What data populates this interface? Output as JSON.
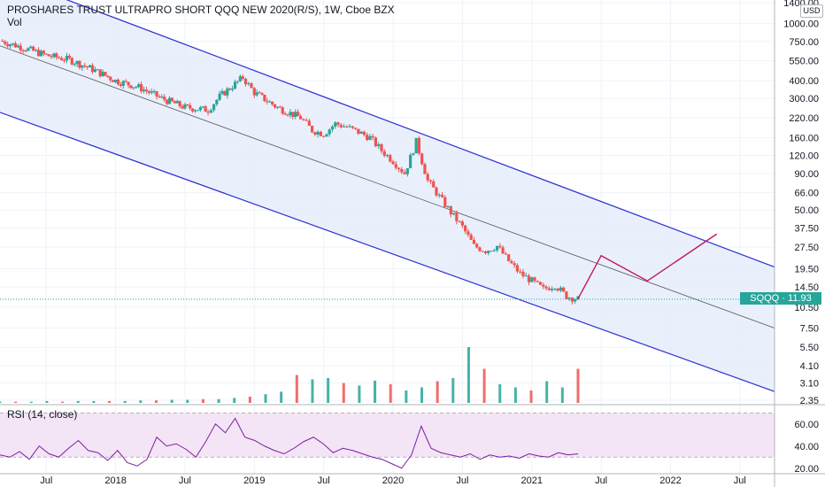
{
  "header": {
    "title": "PROSHARES TRUST ULTRAPRO SHORT QQQ NEW 2020(R/S), 1W, Cboe BZX",
    "volume_label": "Vol",
    "rsi_label": "RSI (14, close)",
    "currency": "USD"
  },
  "price_tag": {
    "symbol": "SQQQ",
    "value": "11.93",
    "color": "#26a69a"
  },
  "colors": {
    "up": "#26a69a",
    "down": "#ef5350",
    "channel_line": "#2a2fd1",
    "channel_fill": "#e3ecfb",
    "mid_line": "#555555",
    "projection": "#c2185b",
    "rsi_line": "#7b1fa2",
    "rsi_band": "#f3e5f5"
  },
  "chart_data": [
    {
      "type": "candlestick",
      "title": "PROSHARES TRUST ULTRAPRO SHORT QQQ NEW 2020(R/S), 1W, Cboe BZX",
      "y_scale": "log",
      "y_ticks": [
        "1400.00",
        "1000.00",
        "750.00",
        "550.00",
        "400.00",
        "300.00",
        "220.00",
        "160.00",
        "120.00",
        "90.00",
        "66.00",
        "50.00",
        "37.50",
        "27.50",
        "19.50",
        "14.50",
        "10.50",
        "7.50",
        "5.50",
        "4.10",
        "3.10",
        "2.35"
      ],
      "x_ticks": [
        "Jul",
        "2018",
        "Jul",
        "2019",
        "Jul",
        "2020",
        "Jul",
        "2021",
        "Jul",
        "2022",
        "Jul"
      ],
      "x_range": [
        "2017-03",
        "2022-10"
      ],
      "last_price": 11.93,
      "series": [
        {
          "name": "SQQQ",
          "points": [
            [
              "2017-03",
              760
            ],
            [
              "2017-05",
              680
            ],
            [
              "2017-07",
              600
            ],
            [
              "2017-09",
              560
            ],
            [
              "2017-11",
              480
            ],
            [
              "2018-01",
              400
            ],
            [
              "2018-03",
              360
            ],
            [
              "2018-05",
              300
            ],
            [
              "2018-07",
              260
            ],
            [
              "2018-09",
              250
            ],
            [
              "2018-10",
              310
            ],
            [
              "2018-12",
              420
            ],
            [
              "2019-01",
              330
            ],
            [
              "2019-03",
              260
            ],
            [
              "2019-05",
              220
            ],
            [
              "2019-06",
              180
            ],
            [
              "2019-07",
              170
            ],
            [
              "2019-08",
              200
            ],
            [
              "2019-09",
              190
            ],
            [
              "2019-10",
              175
            ],
            [
              "2019-11",
              160
            ],
            [
              "2019-12",
              130
            ],
            [
              "2020-01",
              110
            ],
            [
              "2020-02",
              90
            ],
            [
              "2020-03",
              150
            ],
            [
              "2020-04",
              80
            ],
            [
              "2020-05",
              62
            ],
            [
              "2020-06",
              48
            ],
            [
              "2020-07",
              38
            ],
            [
              "2020-08",
              28
            ],
            [
              "2020-09",
              26
            ],
            [
              "2020-10",
              28
            ],
            [
              "2020-11",
              22
            ],
            [
              "2020-12",
              18
            ],
            [
              "2021-01",
              16
            ],
            [
              "2021-02",
              14
            ],
            [
              "2021-03",
              15
            ],
            [
              "2021-04",
              12.5
            ],
            [
              "2021-05",
              11.93
            ]
          ]
        }
      ],
      "channel": {
        "upper": [
          [
            "2017-03",
            2200
          ],
          [
            "2022-10",
            20
          ]
        ],
        "middle": [
          [
            "2017-03",
            700
          ],
          [
            "2022-10",
            7.5
          ]
        ],
        "lower": [
          [
            "2017-03",
            240
          ],
          [
            "2022-10",
            2.7
          ]
        ]
      },
      "projection_path": [
        [
          "2021-05",
          12
        ],
        [
          "2021-07",
          24
        ],
        [
          "2021-11",
          16
        ],
        [
          "2022-05",
          34
        ]
      ]
    },
    {
      "type": "bar",
      "title": "Vol",
      "note": "Weekly volume bars, relative heights only (no volume axis values shown)",
      "series": [
        {
          "relative_values": [
            0.02,
            0.02,
            0.02,
            0.03,
            0.02,
            0.03,
            0.03,
            0.03,
            0.03,
            0.04,
            0.04,
            0.05,
            0.05,
            0.06,
            0.06,
            0.08,
            0.1,
            0.14,
            0.18,
            0.45,
            0.38,
            0.4,
            0.32,
            0.28,
            0.36,
            0.3,
            0.2,
            0.25,
            0.35,
            0.4,
            0.9,
            0.55,
            0.3,
            0.25,
            0.2,
            0.35,
            0.25,
            0.55
          ]
        }
      ]
    },
    {
      "type": "line",
      "title": "RSI (14, close)",
      "y_ticks": [
        "60.00",
        "40.00",
        "20.00"
      ],
      "ylim": [
        15,
        75
      ],
      "band": [
        30,
        70
      ],
      "series": [
        {
          "name": "RSI",
          "values": [
            32,
            30,
            35,
            28,
            40,
            33,
            30,
            38,
            45,
            36,
            34,
            27,
            36,
            25,
            22,
            28,
            48,
            40,
            42,
            37,
            30,
            44,
            60,
            52,
            65,
            48,
            45,
            40,
            36,
            33,
            38,
            44,
            48,
            42,
            34,
            38,
            36,
            33,
            30,
            28,
            24,
            20,
            32,
            58,
            38,
            34,
            32,
            30,
            33,
            28,
            32,
            30,
            31,
            29,
            33,
            31,
            30,
            34,
            32,
            33
          ]
        }
      ]
    }
  ]
}
